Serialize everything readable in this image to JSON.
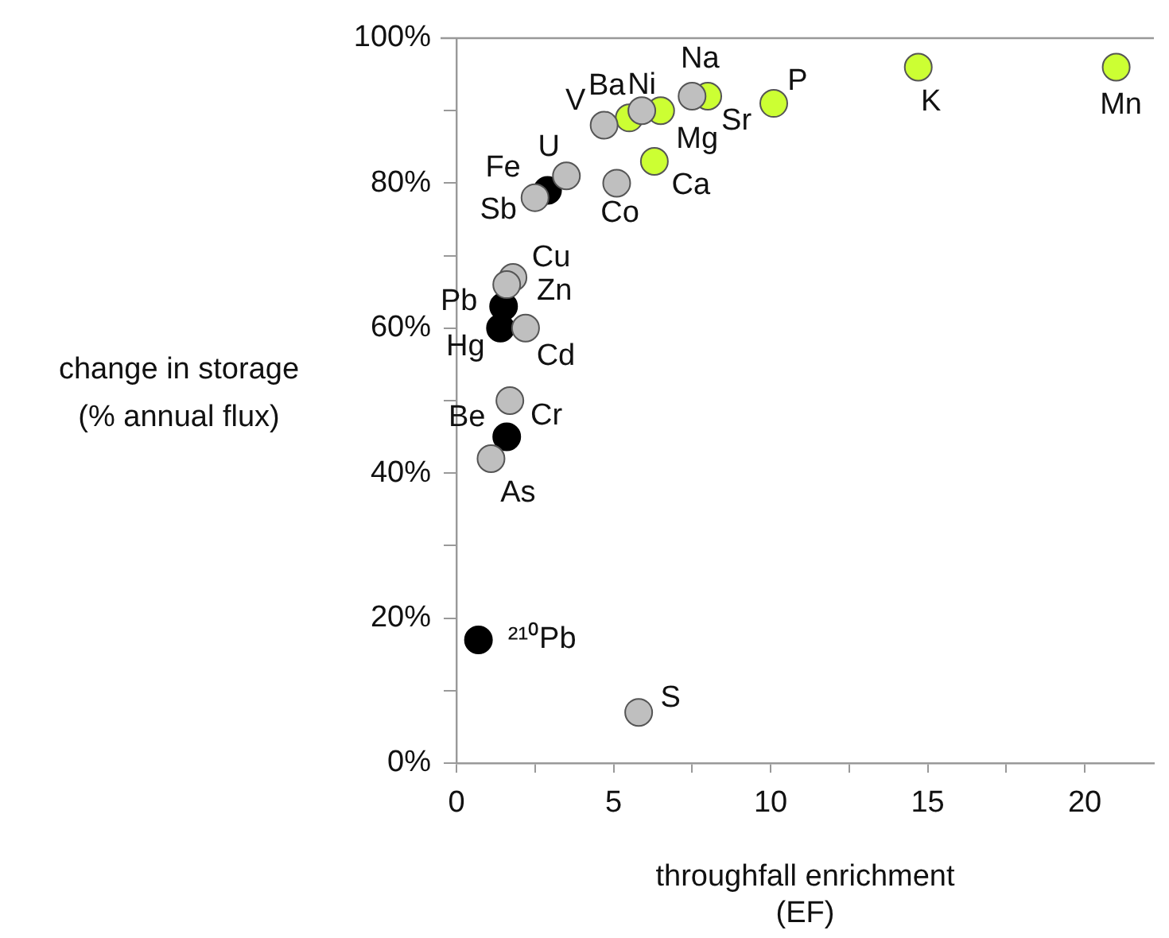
{
  "chart_data": {
    "type": "scatter",
    "xlabel": "throughfall enrichment\n(EF)",
    "ylabel": "change in storage\n(% annual flux)",
    "xlim": [
      0,
      22.2
    ],
    "xticks": [
      0,
      {
        "value": 2.5,
        "label": null
      },
      5,
      {
        "value": 7.5,
        "label": null
      },
      10,
      {
        "value": 12.5,
        "label": null
      },
      15,
      {
        "value": 17.5,
        "label": null
      },
      20
    ],
    "ylim": [
      0,
      100
    ],
    "yticks": [
      {
        "value": 0,
        "label": "0%"
      },
      {
        "value": 10,
        "label": null
      },
      {
        "value": 20,
        "label": "20%"
      },
      {
        "value": 30,
        "label": null
      },
      {
        "value": 40,
        "label": "40%"
      },
      {
        "value": 50,
        "label": null
      },
      {
        "value": 60,
        "label": "60%"
      },
      {
        "value": 70,
        "label": null
      },
      {
        "value": 80,
        "label": "80%"
      },
      {
        "value": 90,
        "label": null
      },
      {
        "value": 100,
        "label": "100%"
      }
    ],
    "marker": "circle",
    "legend": false,
    "series": [
      {
        "color": "#bfbfbf",
        "x": [
          7.5,
          5.9,
          4.7,
          5.1,
          3.5,
          2.5,
          1.8,
          1.6,
          2.2,
          1.7,
          1.1,
          5.8
        ],
        "values": [
          92,
          90,
          88,
          80,
          81,
          78,
          67,
          66,
          60,
          50,
          42,
          7
        ]
      },
      {
        "color": "#ccff33",
        "x": [
          14.7,
          21.0,
          10.1,
          8.0,
          6.5,
          5.5,
          6.3
        ],
        "values": [
          96,
          96,
          91,
          92,
          90,
          89,
          83
        ]
      },
      {
        "color": "#000000",
        "x": [
          2.9,
          1.5,
          1.4,
          1.6,
          0.7
        ],
        "values": [
          79,
          63,
          60,
          45,
          17
        ]
      }
    ],
    "annotations": [
      {
        "text": "Na",
        "x": 7.5,
        "y": 92
      },
      {
        "text": "Ni",
        "x": 5.9,
        "y": 90
      },
      {
        "text": "V",
        "x": 4.7,
        "y": 88
      },
      {
        "text": "Co",
        "x": 5.1,
        "y": 80
      },
      {
        "text": "U",
        "x": 3.5,
        "y": 81
      },
      {
        "text": "Sb",
        "x": 2.5,
        "y": 78
      },
      {
        "text": "Cu",
        "x": 1.8,
        "y": 67
      },
      {
        "text": "Zn",
        "x": 1.6,
        "y": 66
      },
      {
        "text": "Cd",
        "x": 2.2,
        "y": 60
      },
      {
        "text": "Cr",
        "x": 1.7,
        "y": 50
      },
      {
        "text": "As",
        "x": 1.1,
        "y": 42
      },
      {
        "text": "S",
        "x": 5.8,
        "y": 7
      },
      {
        "text": "K",
        "x": 14.7,
        "y": 96
      },
      {
        "text": "Mn",
        "x": 21.0,
        "y": 96
      },
      {
        "text": "P",
        "x": 10.1,
        "y": 91
      },
      {
        "text": "Sr",
        "x": 8.0,
        "y": 92
      },
      {
        "text": "Mg",
        "x": 6.5,
        "y": 90
      },
      {
        "text": "Ba",
        "x": 5.5,
        "y": 89
      },
      {
        "text": "Ca",
        "x": 6.3,
        "y": 83
      },
      {
        "text": "Fe",
        "x": 2.9,
        "y": 79
      },
      {
        "text": "Pb",
        "x": 1.5,
        "y": 63
      },
      {
        "text": "Hg",
        "x": 1.4,
        "y": 60
      },
      {
        "text": "Be",
        "x": 1.6,
        "y": 45
      },
      {
        "text": "²¹⁰Pb",
        "x": 0.7,
        "y": 17
      }
    ]
  }
}
